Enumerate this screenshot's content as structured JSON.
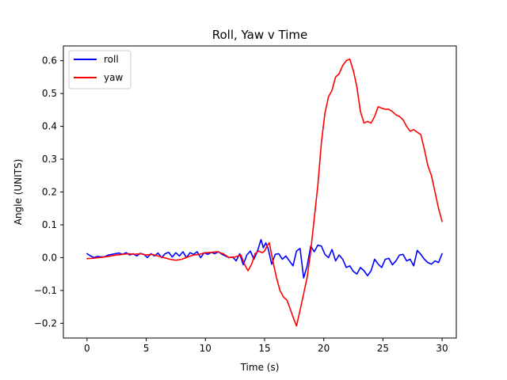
{
  "chart_data": {
    "type": "line",
    "title": "Roll, Yaw v Time",
    "xlabel": "Time (s)",
    "ylabel": "Angle (UNITS)",
    "xlim": [
      -2,
      31.2
    ],
    "ylim": [
      -0.245,
      0.645
    ],
    "xticks": [
      0,
      5,
      10,
      15,
      20,
      25,
      30
    ],
    "xtick_labels": [
      "0",
      "5",
      "10",
      "15",
      "20",
      "25",
      "30"
    ],
    "yticks": [
      -0.2,
      -0.1,
      0.0,
      0.1,
      0.2,
      0.3,
      0.4,
      0.5,
      0.6
    ],
    "ytick_labels": [
      "−0.2",
      "−0.1",
      "0.0",
      "0.1",
      "0.2",
      "0.3",
      "0.4",
      "0.5",
      "0.6"
    ],
    "grid": false,
    "legend_position": "top-left",
    "series": [
      {
        "name": "roll",
        "color": "#0000ff",
        "x": [
          0.0,
          0.3,
          0.6,
          0.9,
          1.2,
          1.5,
          1.8,
          2.1,
          2.4,
          2.7,
          3.0,
          3.3,
          3.6,
          3.9,
          4.2,
          4.5,
          4.8,
          5.1,
          5.4,
          5.7,
          6.0,
          6.3,
          6.6,
          6.9,
          7.2,
          7.5,
          7.8,
          8.1,
          8.4,
          8.7,
          9.0,
          9.3,
          9.6,
          9.9,
          10.2,
          10.5,
          10.8,
          11.1,
          11.4,
          11.7,
          12.0,
          12.3,
          12.6,
          12.9,
          13.2,
          13.5,
          13.8,
          14.1,
          14.4,
          14.7,
          14.9,
          15.1,
          15.3,
          15.6,
          15.9,
          16.2,
          16.5,
          16.8,
          17.1,
          17.4,
          17.7,
          18.0,
          18.3,
          18.6,
          18.9,
          19.2,
          19.5,
          19.8,
          20.1,
          20.4,
          20.7,
          21.0,
          21.3,
          21.6,
          21.9,
          22.2,
          22.5,
          22.8,
          23.1,
          23.4,
          23.7,
          24.0,
          24.3,
          24.6,
          24.9,
          25.2,
          25.5,
          25.8,
          26.1,
          26.4,
          26.7,
          27.0,
          27.3,
          27.6,
          27.9,
          28.2,
          28.5,
          28.8,
          29.1,
          29.4,
          29.7,
          30.0
        ],
        "values": [
          0.012,
          0.005,
          0.0,
          0.004,
          0.002,
          0.003,
          0.008,
          0.01,
          0.012,
          0.014,
          0.01,
          0.015,
          0.008,
          0.012,
          0.005,
          0.013,
          0.01,
          0.0,
          0.012,
          0.005,
          0.014,
          0.0,
          0.012,
          0.016,
          0.002,
          0.015,
          0.005,
          0.018,
          0.0,
          0.015,
          0.01,
          0.018,
          0.0,
          0.015,
          0.01,
          0.016,
          0.012,
          0.018,
          0.01,
          0.005,
          0.0,
          0.002,
          -0.01,
          0.012,
          -0.022,
          0.008,
          0.02,
          -0.005,
          0.02,
          0.055,
          0.03,
          0.045,
          0.028,
          -0.02,
          0.01,
          0.012,
          -0.005,
          0.005,
          -0.01,
          -0.025,
          0.02,
          0.028,
          -0.062,
          -0.025,
          0.035,
          0.018,
          0.038,
          0.035,
          0.01,
          0.0,
          0.025,
          -0.01,
          0.008,
          -0.005,
          -0.03,
          -0.025,
          -0.042,
          -0.05,
          -0.03,
          -0.04,
          -0.055,
          -0.04,
          -0.005,
          -0.02,
          -0.03,
          -0.005,
          -0.002,
          -0.022,
          -0.01,
          0.008,
          0.01,
          -0.01,
          -0.005,
          -0.025,
          0.022,
          0.01,
          -0.005,
          -0.015,
          -0.02,
          -0.01,
          -0.015,
          0.012
        ]
      },
      {
        "name": "yaw",
        "color": "#ff0000",
        "x": [
          0.0,
          0.5,
          1.0,
          1.5,
          2.0,
          2.5,
          3.0,
          3.5,
          4.0,
          4.5,
          5.0,
          5.5,
          6.0,
          6.5,
          7.0,
          7.5,
          8.0,
          8.5,
          9.0,
          9.5,
          10.0,
          10.5,
          11.0,
          11.5,
          12.0,
          12.5,
          13.0,
          13.3,
          13.6,
          13.9,
          14.2,
          14.5,
          14.8,
          15.0,
          15.2,
          15.4,
          15.7,
          16.0,
          16.3,
          16.6,
          16.9,
          17.2,
          17.5,
          17.7,
          18.0,
          18.3,
          18.6,
          18.9,
          19.2,
          19.5,
          19.8,
          20.1,
          20.4,
          20.7,
          21.0,
          21.3,
          21.6,
          21.9,
          22.2,
          22.5,
          22.8,
          23.1,
          23.4,
          23.7,
          24.0,
          24.3,
          24.6,
          24.9,
          25.2,
          25.5,
          25.8,
          26.1,
          26.4,
          26.7,
          27.0,
          27.3,
          27.6,
          27.9,
          28.2,
          28.5,
          28.8,
          29.1,
          29.4,
          29.7,
          30.0
        ],
        "values": [
          -0.003,
          -0.002,
          0.0,
          0.002,
          0.005,
          0.008,
          0.01,
          0.012,
          0.01,
          0.012,
          0.008,
          0.01,
          0.005,
          0.0,
          -0.005,
          -0.008,
          -0.005,
          0.002,
          0.008,
          0.01,
          0.015,
          0.016,
          0.018,
          0.012,
          0.0,
          0.002,
          0.008,
          -0.02,
          -0.04,
          -0.02,
          0.012,
          0.02,
          0.015,
          0.02,
          0.035,
          0.045,
          -0.01,
          -0.06,
          -0.1,
          -0.12,
          -0.13,
          -0.16,
          -0.19,
          -0.208,
          -0.16,
          -0.11,
          -0.06,
          0.02,
          0.12,
          0.22,
          0.35,
          0.44,
          0.49,
          0.51,
          0.55,
          0.56,
          0.585,
          0.6,
          0.605,
          0.57,
          0.52,
          0.445,
          0.41,
          0.415,
          0.41,
          0.43,
          0.46,
          0.455,
          0.452,
          0.452,
          0.445,
          0.435,
          0.43,
          0.42,
          0.4,
          0.385,
          0.39,
          0.382,
          0.375,
          0.33,
          0.28,
          0.25,
          0.2,
          0.15,
          0.11
        ]
      }
    ]
  }
}
